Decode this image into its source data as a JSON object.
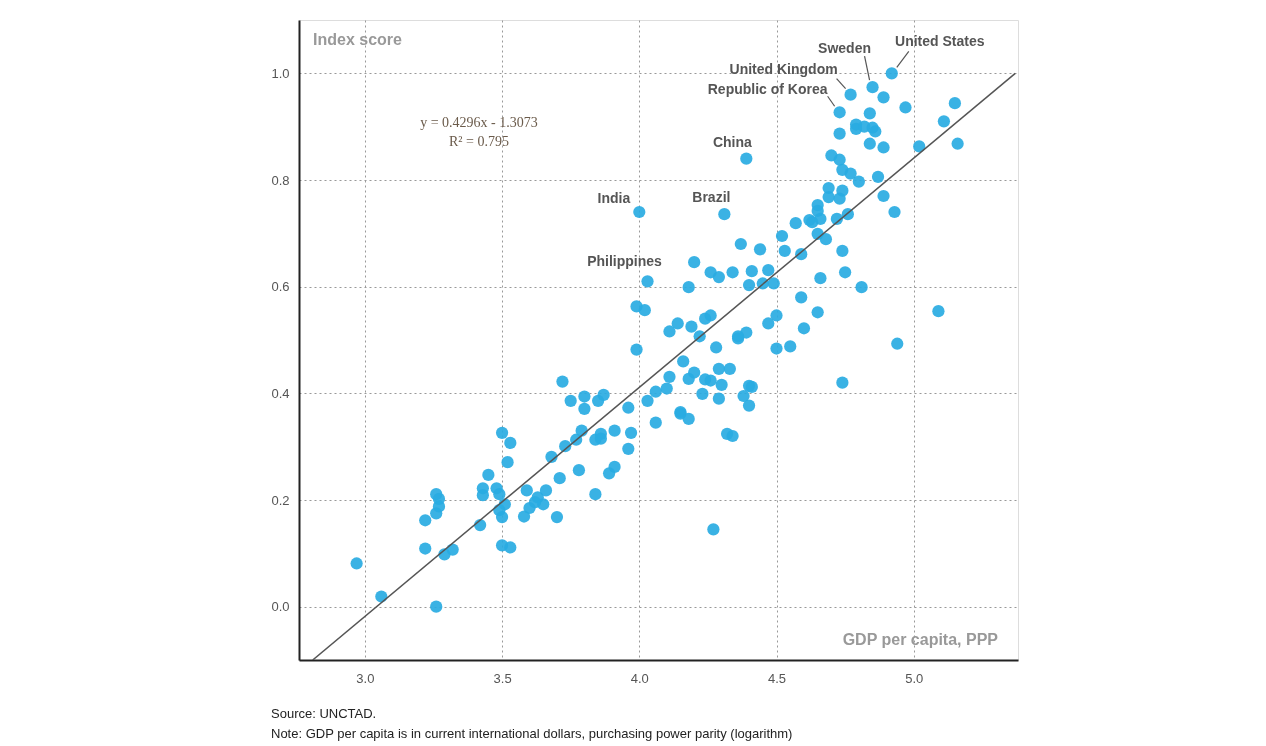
{
  "chart_data": {
    "type": "scatter",
    "xlabel": "GDP per capita, PPP",
    "ylabel": "Index score",
    "xlim": [
      2.76,
      5.38
    ],
    "ylim": [
      -0.1,
      1.1
    ],
    "xticks": [
      {
        "value": 3,
        "label": "3.0"
      },
      3.5,
      {
        "value": 4,
        "label": "4.0"
      },
      4.5,
      {
        "value": 5,
        "label": "5.0"
      }
    ],
    "yticks": [
      {
        "value": 0,
        "label": "0.0"
      },
      0.2,
      0.4,
      0.6,
      0.8,
      {
        "value": 1,
        "label": "1.0"
      }
    ],
    "grid": true,
    "series": [
      {
        "marker": "circle",
        "color": "#29abe2",
        "x": [
          2.97,
          3.06,
          3.26,
          3.22,
          3.29,
          3.32,
          3.22,
          3.26,
          3.27,
          3.27,
          3.26,
          3.42,
          3.45,
          3.43,
          3.43,
          3.48,
          3.49,
          3.51,
          3.49,
          3.5,
          3.5,
          3.53,
          3.5,
          3.53,
          3.52,
          3.59,
          3.6,
          3.58,
          3.62,
          3.63,
          3.65,
          3.66,
          3.7,
          3.71,
          3.68,
          3.73,
          3.77,
          3.78,
          3.79,
          3.84,
          3.86,
          3.86,
          3.91,
          3.91,
          3.89,
          3.84,
          3.96,
          3.97,
          3.96,
          3.75,
          3.8,
          3.8,
          3.85,
          3.87,
          3.72,
          4.03,
          4.06,
          4.06,
          4.2,
          4.26,
          4.29,
          4.34,
          4.41,
          4.47,
          4.4,
          4.45,
          4.49,
          4.18,
          4.03,
          4.53,
          4.59,
          4.74,
          4.75,
          4.66,
          4.59,
          4.65,
          4.6,
          4.5,
          4.47,
          4.5,
          4.55,
          4.74,
          4.39,
          4.36,
          4.36,
          4.28,
          4.22,
          4.19,
          4.24,
          4.26,
          4.14,
          4.11,
          3.99,
          4.02,
          3.99,
          4.16,
          4.11,
          4.1,
          4.18,
          4.2,
          4.24,
          4.26,
          4.29,
          4.33,
          4.3,
          4.23,
          4.29,
          4.38,
          4.4,
          4.41,
          4.4,
          4.15,
          4.15,
          4.18,
          4.32,
          4.34,
          4.92,
          4.85,
          4.77,
          4.73,
          4.89,
          4.97,
          5.15,
          5.11,
          5.16,
          5.02,
          4.84,
          4.79,
          4.79,
          4.82,
          4.85,
          4.86,
          4.73,
          4.84,
          4.89,
          4.39,
          4.7,
          4.73,
          4.74,
          4.77,
          4.8,
          4.87,
          4.89,
          4.93,
          4.69,
          4.74,
          4.69,
          4.73,
          4.65,
          4.65,
          4.66,
          4.72,
          4.76,
          4.62,
          4.63,
          4.57,
          4.65,
          4.68,
          4.52,
          4.81,
          5.09,
          4.31,
          4.37,
          4.44,
          4.94,
          4.0,
          4.27
        ],
        "values": [
          0.081,
          0.019,
          0.0,
          0.109,
          0.098,
          0.107,
          0.162,
          0.175,
          0.188,
          0.202,
          0.211,
          0.153,
          0.247,
          0.222,
          0.209,
          0.222,
          0.211,
          0.192,
          0.181,
          0.168,
          0.115,
          0.111,
          0.326,
          0.307,
          0.271,
          0.218,
          0.185,
          0.169,
          0.196,
          0.205,
          0.192,
          0.218,
          0.168,
          0.241,
          0.281,
          0.301,
          0.313,
          0.256,
          0.33,
          0.313,
          0.324,
          0.315,
          0.33,
          0.262,
          0.25,
          0.211,
          0.296,
          0.326,
          0.373,
          0.386,
          0.394,
          0.371,
          0.386,
          0.397,
          0.422,
          0.386,
          0.403,
          0.345,
          0.646,
          0.627,
          0.618,
          0.627,
          0.629,
          0.631,
          0.603,
          0.606,
          0.606,
          0.599,
          0.61,
          0.667,
          0.661,
          0.667,
          0.627,
          0.616,
          0.58,
          0.552,
          0.522,
          0.546,
          0.531,
          0.484,
          0.488,
          0.42,
          0.514,
          0.503,
          0.507,
          0.486,
          0.507,
          0.525,
          0.54,
          0.546,
          0.531,
          0.516,
          0.563,
          0.556,
          0.482,
          0.46,
          0.431,
          0.409,
          0.427,
          0.439,
          0.426,
          0.424,
          0.446,
          0.446,
          0.416,
          0.399,
          0.39,
          0.395,
          0.414,
          0.412,
          0.377,
          0.362,
          0.365,
          0.352,
          0.324,
          0.32,
          1.0,
          0.974,
          0.96,
          0.927,
          0.955,
          0.936,
          0.944,
          0.91,
          0.868,
          0.863,
          0.925,
          0.904,
          0.896,
          0.9,
          0.898,
          0.891,
          0.887,
          0.868,
          0.861,
          0.84,
          0.846,
          0.838,
          0.819,
          0.812,
          0.797,
          0.806,
          0.77,
          0.74,
          0.785,
          0.78,
          0.768,
          0.765,
          0.753,
          0.742,
          0.727,
          0.727,
          0.736,
          0.725,
          0.721,
          0.719,
          0.699,
          0.689,
          0.695,
          0.599,
          0.554,
          0.736,
          0.68,
          0.67,
          0.493,
          0.74,
          0.145
        ]
      },
      {
        "type": "line",
        "color": "#555555",
        "x": [
          2.81,
          5.37
        ],
        "values": [
          -0.1,
          1.0
        ]
      }
    ],
    "annotations": [
      {
        "text": "United States",
        "x": 4.92,
        "y": 1.0
      },
      {
        "text": "Sweden",
        "x": 4.85,
        "y": 0.974
      },
      {
        "text": "United Kingdom",
        "x": 4.77,
        "y": 0.96
      },
      {
        "text": "Republic of Korea",
        "x": 4.73,
        "y": 0.927
      },
      {
        "text": "China",
        "x": 4.39,
        "y": 0.84
      },
      {
        "text": "Brazil",
        "x": 4.31,
        "y": 0.736
      },
      {
        "text": "India",
        "x": 4.0,
        "y": 0.74
      },
      {
        "text": "Philippines",
        "x": 4.03,
        "y": 0.61
      },
      "y = 0.4296x - 1.3073",
      "R² = 0.795",
      "Source: UNCTAD.",
      "Note: GDP per capita is in current international dollars, purchasing power parity (logarithm)"
    ]
  }
}
